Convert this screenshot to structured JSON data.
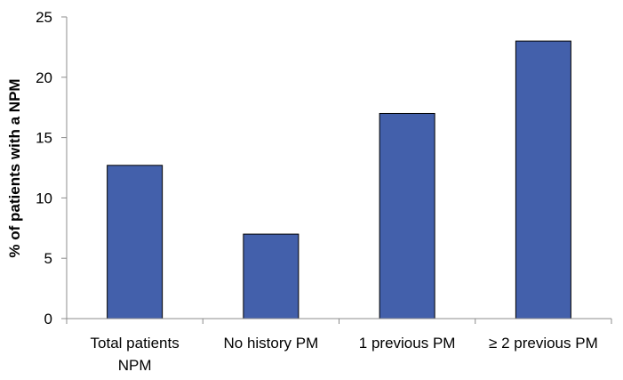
{
  "chart_data": {
    "type": "bar",
    "title": "",
    "xlabel": "",
    "ylabel": "% of patients with a NPM",
    "categories": [
      [
        "Total patients",
        "NPM"
      ],
      [
        "No history PM"
      ],
      [
        "1 previous PM"
      ],
      [
        "≥ 2 previous PM"
      ]
    ],
    "values": [
      12.7,
      7.0,
      17.0,
      23.0
    ],
    "ylim": [
      0,
      25
    ],
    "yticks": [
      0,
      5,
      10,
      15,
      20,
      25
    ],
    "grid": false,
    "legend": "none",
    "colors": {
      "bar_fill": "#4360AB",
      "bar_stroke": "#000000",
      "axis": "#8C8C8C"
    }
  }
}
